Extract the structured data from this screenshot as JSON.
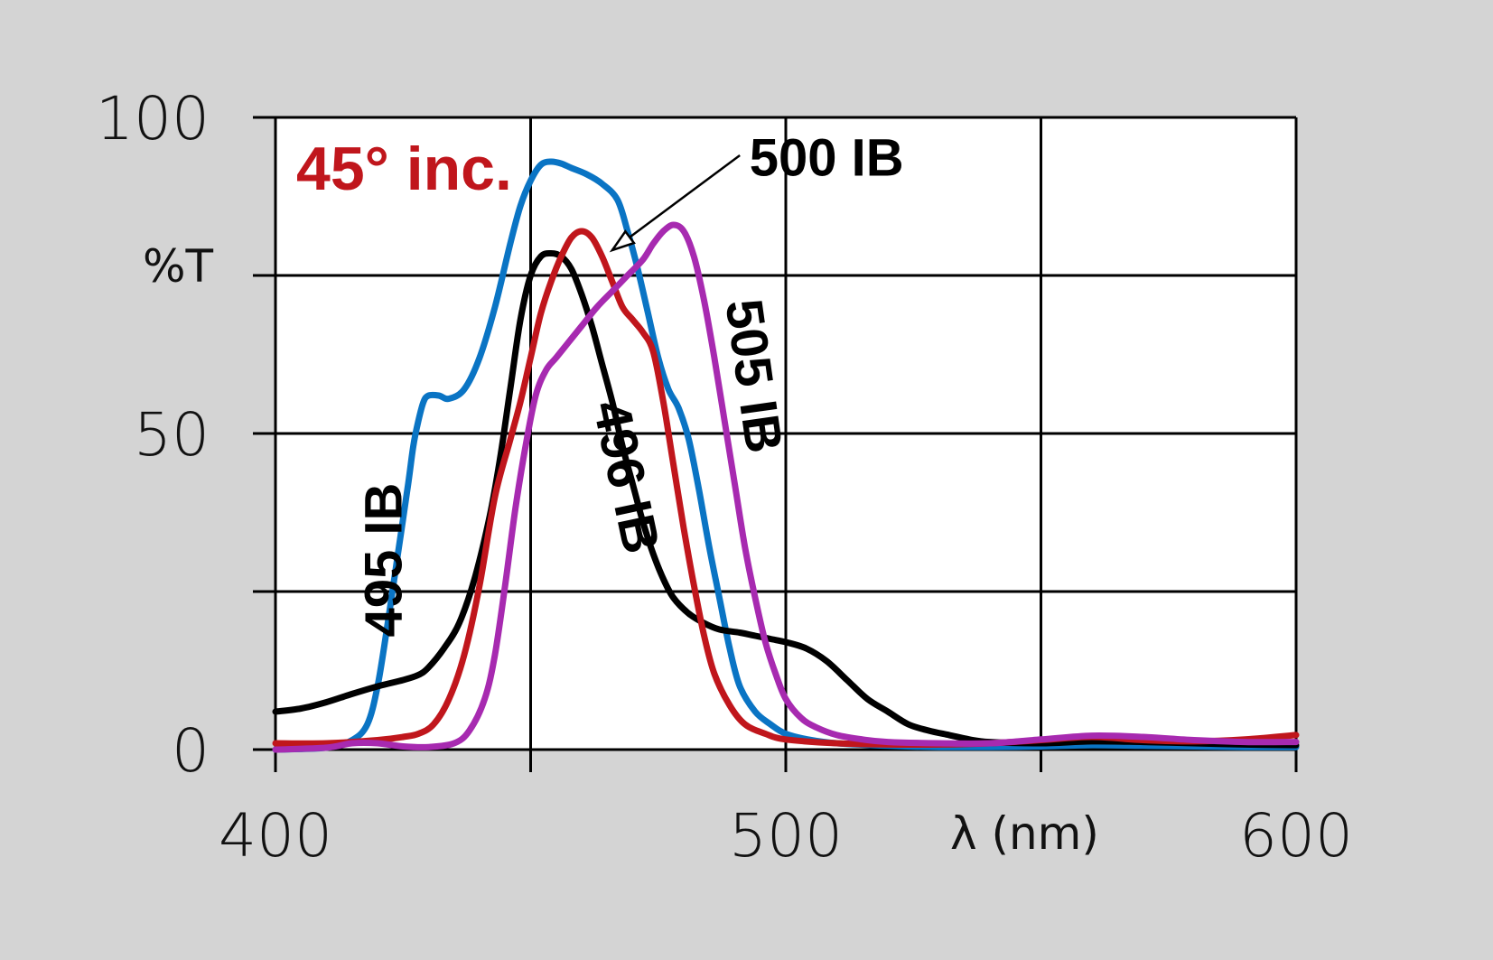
{
  "chart_data": {
    "type": "line",
    "title": "",
    "annotation": "45° inc.",
    "annotation_color": "#c0161c",
    "xlabel": "λ (nm)",
    "ylabel": "%T",
    "xlim": [
      400,
      600
    ],
    "ylim": [
      0,
      100
    ],
    "x_ticks": [
      400,
      500,
      600
    ],
    "y_ticks": [
      0,
      50,
      100
    ],
    "x_grid": [
      400,
      450,
      500,
      550,
      600
    ],
    "y_grid": [
      0,
      25,
      50,
      75,
      100
    ],
    "grid": true,
    "series": [
      {
        "name": "495 IB",
        "color": "#0a74c4",
        "points": [
          [
            400,
            0
          ],
          [
            410,
            0.3
          ],
          [
            415,
            1.5
          ],
          [
            418,
            4
          ],
          [
            420,
            10
          ],
          [
            422,
            20
          ],
          [
            424,
            31
          ],
          [
            426,
            42
          ],
          [
            427,
            48
          ],
          [
            428,
            52
          ],
          [
            429,
            55
          ],
          [
            430,
            56
          ],
          [
            432,
            56
          ],
          [
            434,
            55.5
          ],
          [
            437,
            57
          ],
          [
            440,
            62
          ],
          [
            443,
            70
          ],
          [
            446,
            80
          ],
          [
            448,
            86
          ],
          [
            450,
            90
          ],
          [
            452,
            92.5
          ],
          [
            454,
            93
          ],
          [
            456,
            92.7
          ],
          [
            458,
            92
          ],
          [
            461,
            91
          ],
          [
            464,
            89.5
          ],
          [
            467,
            87
          ],
          [
            469,
            82
          ],
          [
            471,
            76
          ],
          [
            473,
            69
          ],
          [
            475,
            62
          ],
          [
            477,
            57
          ],
          [
            479,
            54
          ],
          [
            481,
            49
          ],
          [
            483,
            41
          ],
          [
            485,
            32
          ],
          [
            487,
            24
          ],
          [
            489,
            16
          ],
          [
            491,
            10
          ],
          [
            494,
            6
          ],
          [
            497,
            4
          ],
          [
            500,
            2.5
          ],
          [
            505,
            1.5
          ],
          [
            510,
            1
          ],
          [
            520,
            0.6
          ],
          [
            530,
            0.4
          ],
          [
            540,
            0.4
          ],
          [
            550,
            0.5
          ],
          [
            560,
            0.7
          ],
          [
            570,
            0.6
          ],
          [
            580,
            0.5
          ],
          [
            590,
            0.4
          ],
          [
            600,
            0.4
          ]
        ]
      },
      {
        "name": "496 IB",
        "color": "#000000",
        "points": [
          [
            400,
            6
          ],
          [
            405,
            6.5
          ],
          [
            410,
            7.5
          ],
          [
            415,
            8.8
          ],
          [
            420,
            10
          ],
          [
            425,
            11
          ],
          [
            428,
            11.8
          ],
          [
            430,
            13
          ],
          [
            433,
            16
          ],
          [
            436,
            20
          ],
          [
            439,
            27
          ],
          [
            442,
            37
          ],
          [
            444,
            46
          ],
          [
            446,
            57
          ],
          [
            448,
            68
          ],
          [
            450,
            75
          ],
          [
            452,
            78
          ],
          [
            454,
            78.5
          ],
          [
            456,
            78
          ],
          [
            458,
            76
          ],
          [
            460,
            72
          ],
          [
            462,
            67
          ],
          [
            464,
            61
          ],
          [
            466,
            55
          ],
          [
            468,
            48
          ],
          [
            470,
            42
          ],
          [
            472,
            36
          ],
          [
            474,
            31
          ],
          [
            476,
            27
          ],
          [
            478,
            24
          ],
          [
            481,
            21.5
          ],
          [
            484,
            20
          ],
          [
            487,
            19
          ],
          [
            491,
            18.5
          ],
          [
            494,
            18
          ],
          [
            497,
            17.5
          ],
          [
            500,
            17
          ],
          [
            504,
            16
          ],
          [
            508,
            14
          ],
          [
            512,
            11
          ],
          [
            516,
            8
          ],
          [
            520,
            6
          ],
          [
            524,
            4
          ],
          [
            528,
            3
          ],
          [
            532,
            2.3
          ],
          [
            536,
            1.6
          ],
          [
            540,
            1.2
          ],
          [
            550,
            1
          ],
          [
            560,
            1.3
          ],
          [
            570,
            1.2
          ],
          [
            580,
            1
          ],
          [
            590,
            0.8
          ],
          [
            600,
            0.7
          ]
        ]
      },
      {
        "name": "500 IB",
        "color": "#c0161c",
        "points": [
          [
            400,
            1
          ],
          [
            410,
            1
          ],
          [
            420,
            1.5
          ],
          [
            425,
            2
          ],
          [
            428,
            2.5
          ],
          [
            431,
            4
          ],
          [
            434,
            8
          ],
          [
            437,
            15
          ],
          [
            440,
            26
          ],
          [
            443,
            40
          ],
          [
            446,
            49
          ],
          [
            448,
            55
          ],
          [
            450,
            62
          ],
          [
            452,
            69
          ],
          [
            454,
            74
          ],
          [
            456,
            78
          ],
          [
            458,
            81
          ],
          [
            460,
            82
          ],
          [
            462,
            81
          ],
          [
            464,
            78
          ],
          [
            466,
            74
          ],
          [
            468,
            70
          ],
          [
            470,
            68
          ],
          [
            472,
            66
          ],
          [
            474,
            63
          ],
          [
            476,
            55
          ],
          [
            478,
            45
          ],
          [
            480,
            35
          ],
          [
            482,
            26
          ],
          [
            484,
            18
          ],
          [
            486,
            12
          ],
          [
            489,
            7
          ],
          [
            492,
            4
          ],
          [
            496,
            2.5
          ],
          [
            500,
            1.6
          ],
          [
            510,
            1
          ],
          [
            520,
            0.8
          ],
          [
            530,
            0.8
          ],
          [
            540,
            1
          ],
          [
            550,
            1.5
          ],
          [
            560,
            2
          ],
          [
            570,
            1.5
          ],
          [
            580,
            1.3
          ],
          [
            590,
            1.6
          ],
          [
            600,
            2.3
          ]
        ]
      },
      {
        "name": "505 IB",
        "color": "#a72ab0",
        "points": [
          [
            400,
            0
          ],
          [
            410,
            0.3
          ],
          [
            415,
            1
          ],
          [
            420,
            1
          ],
          [
            425,
            0.5
          ],
          [
            430,
            0.4
          ],
          [
            435,
            1
          ],
          [
            438,
            3
          ],
          [
            441,
            8
          ],
          [
            443,
            15
          ],
          [
            445,
            26
          ],
          [
            447,
            38
          ],
          [
            449,
            48
          ],
          [
            451,
            56
          ],
          [
            453,
            60
          ],
          [
            455,
            62
          ],
          [
            458,
            65
          ],
          [
            460,
            67
          ],
          [
            463,
            70
          ],
          [
            466,
            72.5
          ],
          [
            469,
            75
          ],
          [
            472,
            77.5
          ],
          [
            474,
            80
          ],
          [
            476,
            82
          ],
          [
            478,
            83
          ],
          [
            480,
            82
          ],
          [
            482,
            78
          ],
          [
            484,
            71
          ],
          [
            486,
            62
          ],
          [
            488,
            52
          ],
          [
            490,
            42
          ],
          [
            492,
            32
          ],
          [
            494,
            24
          ],
          [
            496,
            17
          ],
          [
            498,
            12
          ],
          [
            500,
            8
          ],
          [
            503,
            5
          ],
          [
            506,
            3.5
          ],
          [
            510,
            2.3
          ],
          [
            515,
            1.6
          ],
          [
            520,
            1.2
          ],
          [
            530,
            1
          ],
          [
            540,
            1
          ],
          [
            550,
            1.6
          ],
          [
            560,
            2.2
          ],
          [
            570,
            2
          ],
          [
            580,
            1.5
          ],
          [
            590,
            1.2
          ],
          [
            600,
            1.2
          ]
        ]
      }
    ],
    "series_labels": [
      {
        "series": "495 IB",
        "text": "495 IB",
        "at": [
          422,
          30
        ],
        "rotate": -90
      },
      {
        "series": "496 IB",
        "text": "496 IB",
        "at": [
          468,
          43
        ],
        "rotate": 78
      },
      {
        "series": "500 IB",
        "text": "500 IB",
        "at": [
          508,
          93
        ],
        "rotate": 0
      },
      {
        "series": "505 IB",
        "text": "505 IB",
        "at": [
          493,
          59
        ],
        "rotate": 82
      }
    ],
    "arrow": {
      "from": [
        491,
        94
      ],
      "to": [
        466,
        79
      ]
    }
  }
}
